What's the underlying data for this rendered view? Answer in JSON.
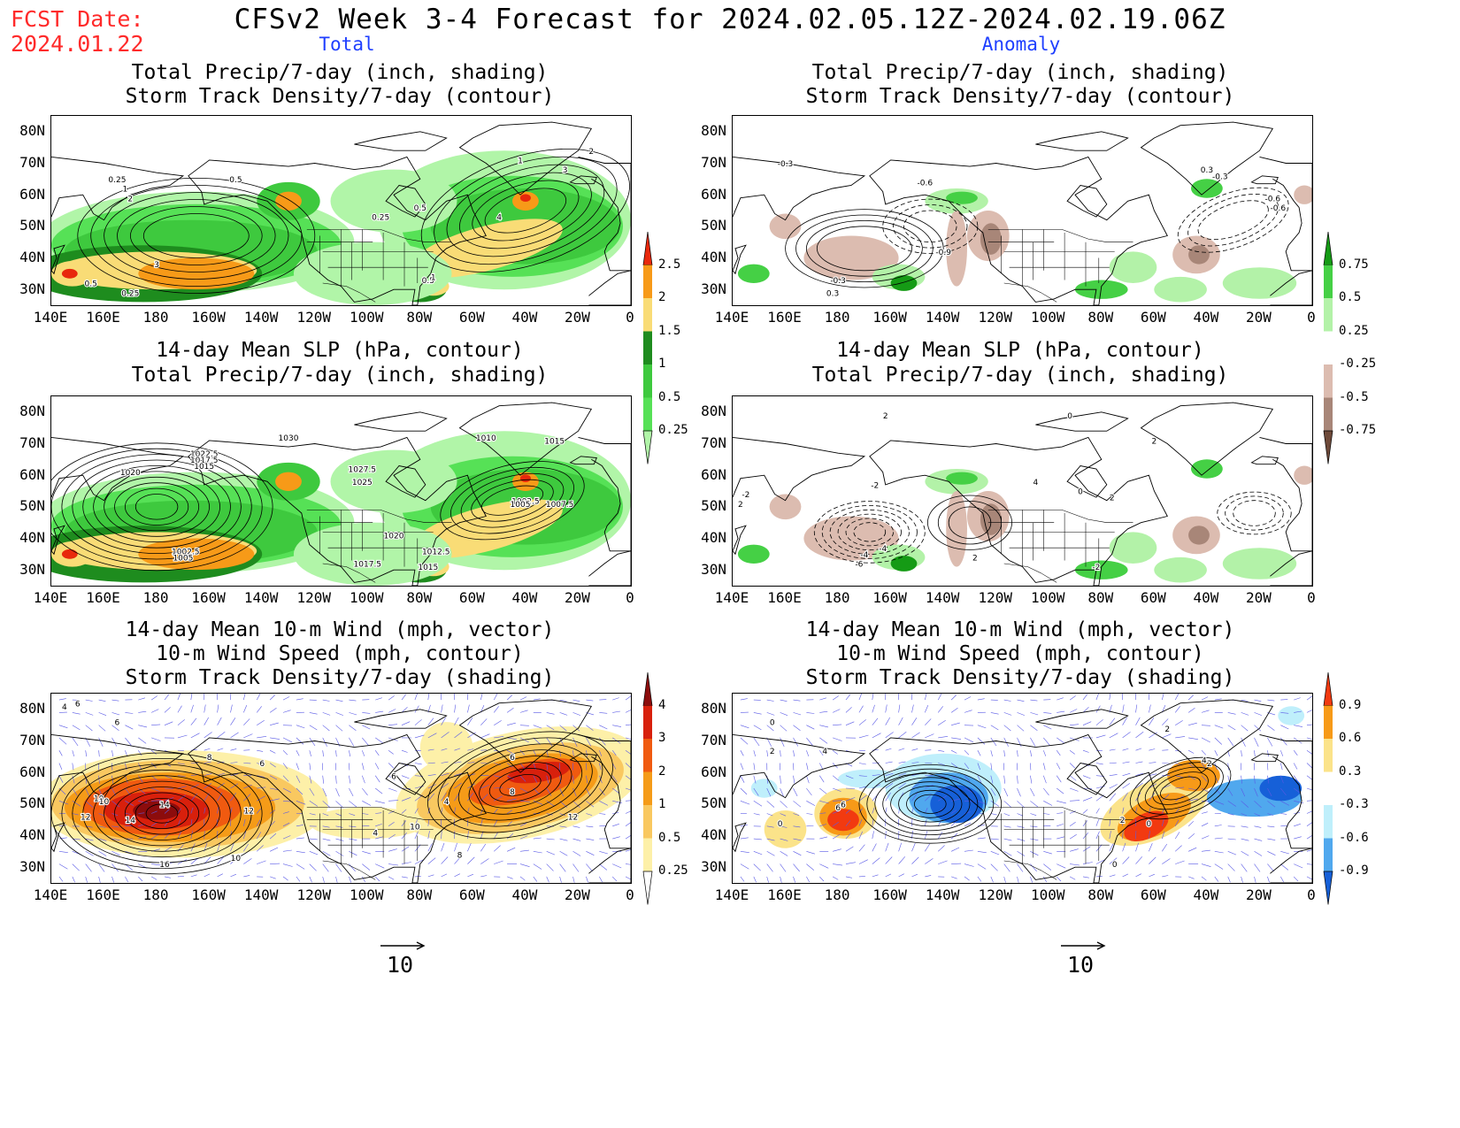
{
  "fcst": {
    "line1": "FCST Date:",
    "line2": "2024.01.22"
  },
  "title": "CFSv2 Week 3-4 Forecast for 2024.02.05.12Z-2024.02.19.06Z",
  "columns": {
    "left": "Total",
    "right": "Anomaly"
  },
  "panels": {
    "l1": {
      "t1": "Total Precip/7-day (inch, shading)",
      "t2": "Storm Track Density/7-day (contour)"
    },
    "l2": {
      "t1": "14-day Mean SLP (hPa, contour)",
      "t2": "Total Precip/7-day (inch, shading)"
    },
    "l3": {
      "t1": "14-day Mean 10-m Wind (mph, vector)",
      "t2": "10-m Wind Speed (mph, contour)",
      "t3": "Storm Track Density/7-day (shading)"
    },
    "r1": {
      "t1": "Total Precip/7-day (inch, shading)",
      "t2": "Storm Track Density/7-day (contour)"
    },
    "r2": {
      "t1": "14-day Mean SLP (hPa, contour)",
      "t2": "Total Precip/7-day (inch, shading)"
    },
    "r3": {
      "t1": "14-day Mean 10-m Wind (mph, vector)",
      "t2": "10-m Wind Speed (mph, contour)",
      "t3": "Storm Track Density/7-day (shading)"
    }
  },
  "lat_labels": [
    "80N",
    "70N",
    "60N",
    "50N",
    "40N",
    "30N"
  ],
  "lon_labels": [
    "140E",
    "160E",
    "180",
    "160W",
    "140W",
    "120W",
    "100W",
    "80W",
    "60W",
    "40W",
    "20W",
    "0"
  ],
  "colorbars": {
    "precip_total": {
      "labels": [
        "2.5",
        "2",
        "1.5",
        "1",
        "0.5",
        "0.25"
      ],
      "colors": [
        "#e8280c",
        "#f79a18",
        "#f9dc76",
        "#1e8c1e",
        "#3ec93e",
        "#56e156",
        "#b1f5a8"
      ]
    },
    "precip_anom": {
      "labels": [
        "0.75",
        "0.5",
        "0.25",
        "-0.25",
        "-0.5",
        "-0.75"
      ],
      "colors": [
        "#159b15",
        "#45d045",
        "#b3f2a8",
        "#ffffff",
        "#dcbcb0",
        "#a88678",
        "#6e4a3a"
      ]
    },
    "storm_total": {
      "labels": [
        "4",
        "3",
        "2",
        "1",
        "0.5",
        "0.25"
      ],
      "colors": [
        "#8c0c0c",
        "#d8200c",
        "#f05a10",
        "#f59b18",
        "#f9c860",
        "#fdf0a8",
        "#ffffff"
      ]
    },
    "storm_anom": {
      "labels": [
        "0.9",
        "0.6",
        "0.3",
        "-0.3",
        "-0.6",
        "-0.9"
      ],
      "colors": [
        "#f23a10",
        "#f79a18",
        "#fbe38a",
        "#ffffff",
        "#bfeffb",
        "#50a8ee",
        "#1660d8"
      ]
    }
  },
  "ref_vector": {
    "value": "10"
  },
  "contour_labels": {
    "l1": [
      "0.25",
      "1",
      "2",
      "0.5",
      "3",
      "0.5",
      "0.25",
      "0.25",
      "0.5",
      "1",
      "3",
      "2",
      "4",
      "0.5",
      "1"
    ],
    "l2": [
      "1022.5",
      "1017.5",
      "1015",
      "1020",
      "1030",
      "1027.5",
      "1025",
      "1010",
      "1015",
      "1002.5",
      "1005",
      "1007.5",
      "1020",
      "1012.5",
      "1017.5",
      "1015",
      "1002.5",
      "1005"
    ],
    "l3": [
      "6",
      "4",
      "6",
      "10",
      "12",
      "14",
      "14",
      "12",
      "10",
      "6",
      "8",
      "6",
      "4",
      "10",
      "8",
      "6",
      "12",
      "16",
      "10",
      "8",
      "4"
    ],
    "r1": [
      "-0.3",
      "-0.6",
      "-0.9",
      "-0.6",
      "-0.3",
      "0.3",
      "-0.3",
      "-0.6",
      "0.3"
    ],
    "r2": [
      "2",
      "-2",
      "-4",
      "2",
      "0",
      "4",
      "2",
      "-4",
      "-6",
      "2",
      "-2",
      "0",
      "2",
      "-2"
    ],
    "r3": [
      "0",
      "2",
      "4",
      "6",
      "6",
      "0",
      "2",
      "0",
      "4",
      "2",
      "0",
      "2"
    ]
  }
}
